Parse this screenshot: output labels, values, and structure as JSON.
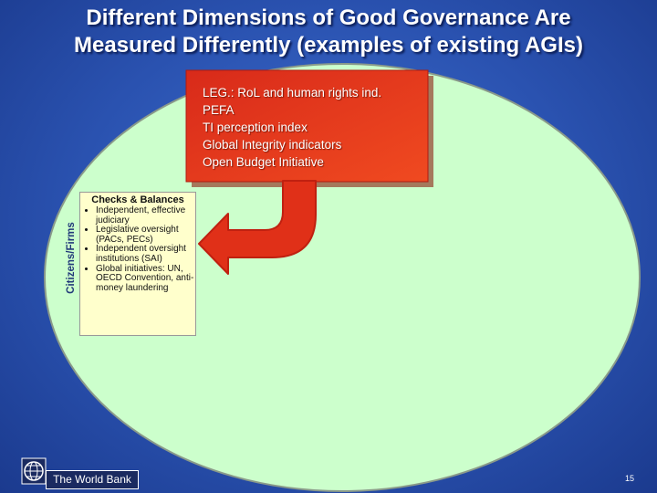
{
  "title": [
    "Different Dimensions of Good Governance Are",
    "Measured Differently (examples of existing AGIs)"
  ],
  "indicator_box": {
    "items": [
      "LEG.: RoL and human rights ind.",
      "PEFA",
      "TI perception index",
      "Global Integrity indicators",
      "Open Budget Initiative"
    ]
  },
  "checks_balances": {
    "heading": "Checks & Balances",
    "items": [
      "Independent, effective judiciary",
      "Legislative oversight (PACs, PECs)",
      "Independent oversight institutions (SAI)",
      "Global initiatives: UN, OECD Convention, anti-money laundering"
    ]
  },
  "side_label": "Citizens/Firms",
  "footer": {
    "logo_text": "The World Bank",
    "page_number": 15
  }
}
